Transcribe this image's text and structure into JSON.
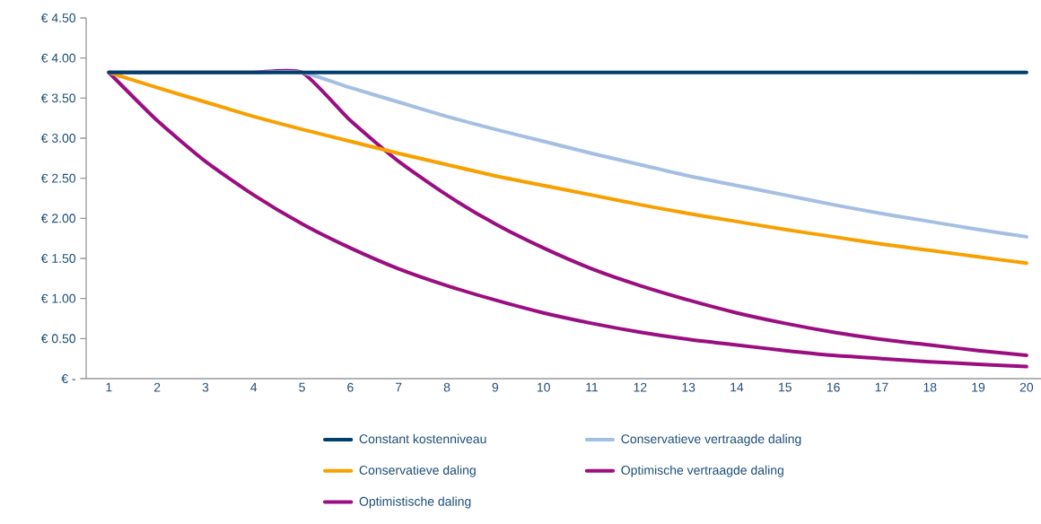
{
  "chart_data": {
    "type": "line",
    "categories": [
      "1",
      "2",
      "3",
      "4",
      "5",
      "6",
      "7",
      "8",
      "9",
      "10",
      "11",
      "12",
      "13",
      "14",
      "15",
      "16",
      "17",
      "18",
      "19",
      "20"
    ],
    "ylim": [
      0,
      4.5
    ],
    "yticks": [
      {
        "value": 0,
        "label": "€ -"
      },
      {
        "value": 0.5,
        "label": "€ 0.50"
      },
      {
        "value": 1,
        "label": "€ 1.00"
      },
      {
        "value": 1.5,
        "label": "€ 1.50"
      },
      {
        "value": 2,
        "label": "€ 2.00"
      },
      {
        "value": 2.5,
        "label": "€ 2.50"
      },
      {
        "value": 3,
        "label": "€ 3.00"
      },
      {
        "value": 3.5,
        "label": "€ 3.50"
      },
      {
        "value": 4,
        "label": "€ 4.00"
      },
      {
        "value": 4.5,
        "label": "€ 4.50"
      }
    ],
    "grid": false,
    "legend": "bottom",
    "marker": "none",
    "line_style": "solid",
    "series": [
      {
        "name": "Constant kostenniveau",
        "color": "#003f6b",
        "values": [
          3.82,
          3.82,
          3.82,
          3.82,
          3.82,
          3.82,
          3.82,
          3.82,
          3.82,
          3.82,
          3.82,
          3.82,
          3.82,
          3.82,
          3.82,
          3.82,
          3.82,
          3.82,
          3.82,
          3.82
        ]
      },
      {
        "name": "Conservatieve vertraagde daling",
        "color": "#a5bfe3",
        "values": [
          3.82,
          3.82,
          3.82,
          3.82,
          3.82,
          3.63,
          3.45,
          3.27,
          3.11,
          2.96,
          2.81,
          2.67,
          2.53,
          2.41,
          2.29,
          2.17,
          2.06,
          1.96,
          1.86,
          1.77
        ]
      },
      {
        "name": "Conservatieve daling",
        "color": "#f7a000",
        "values": [
          3.82,
          3.63,
          3.45,
          3.27,
          3.11,
          2.96,
          2.81,
          2.67,
          2.53,
          2.41,
          2.29,
          2.17,
          2.06,
          1.96,
          1.86,
          1.77,
          1.68,
          1.6,
          1.52,
          1.44
        ]
      },
      {
        "name": "Optimische vertraagde daling",
        "color": "#9b0e80",
        "values": [
          3.82,
          3.82,
          3.82,
          3.82,
          3.82,
          3.22,
          2.71,
          2.29,
          1.93,
          1.63,
          1.37,
          1.16,
          0.98,
          0.82,
          0.69,
          0.58,
          0.49,
          0.42,
          0.35,
          0.29
        ]
      },
      {
        "name": "Optimistische daling",
        "color": "#9b0e80",
        "values": [
          3.82,
          3.22,
          2.71,
          2.29,
          1.93,
          1.63,
          1.37,
          1.16,
          0.98,
          0.82,
          0.69,
          0.58,
          0.49,
          0.42,
          0.35,
          0.29,
          0.25,
          0.21,
          0.18,
          0.15
        ]
      }
    ]
  }
}
